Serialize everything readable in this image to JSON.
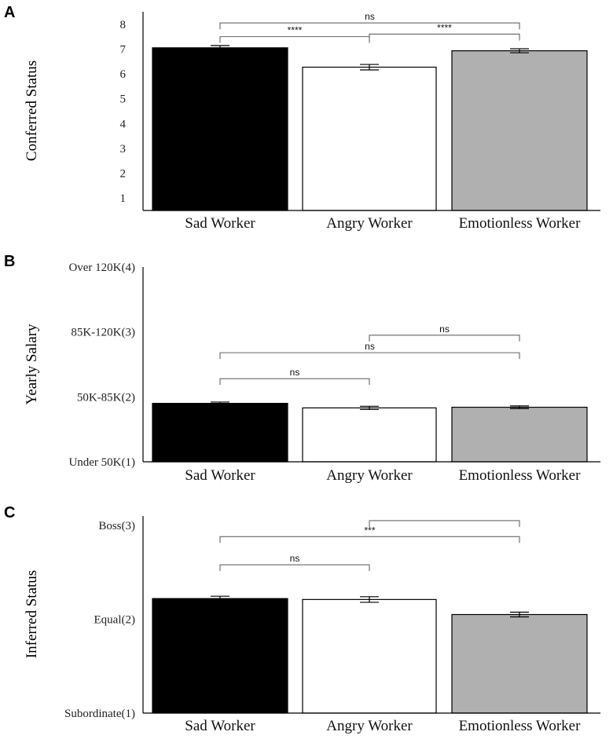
{
  "chart_data": [
    {
      "type": "bar",
      "panel": "A",
      "ylabel": "Conferred Status",
      "ylim": [
        0.5,
        8.5
      ],
      "yticks": [
        1,
        2,
        3,
        4,
        5,
        6,
        7,
        8
      ],
      "ytick_labels": [
        "1",
        "2",
        "3",
        "4",
        "5",
        "6",
        "7",
        "8"
      ],
      "categories": [
        "Sad Worker",
        "Angry Worker",
        "Emotionless Worker"
      ],
      "values": [
        7.05,
        6.27,
        6.93
      ],
      "errors": [
        0.09,
        0.11,
        0.08
      ],
      "colors": [
        "#000000",
        "#ffffff",
        "#b0b0b0"
      ],
      "comparisons": [
        {
          "from": 0,
          "to": 2,
          "y": 8.05,
          "label": "ns"
        },
        {
          "from": 0,
          "to": 1,
          "y": 7.5,
          "label": "****"
        },
        {
          "from": 1,
          "to": 2,
          "y": 7.6,
          "label": "****"
        }
      ]
    },
    {
      "type": "bar",
      "panel": "B",
      "ylabel": "Yearly Salary",
      "ylim": [
        1,
        4
      ],
      "yticks": [
        1,
        2,
        3,
        4
      ],
      "ytick_labels": [
        "Under 50K(1)",
        "50K-85K(2)",
        "85K-120K(3)",
        "Over 120K(4)"
      ],
      "categories": [
        "Sad Worker",
        "Angry Worker",
        "Emotionless Worker"
      ],
      "values": [
        1.9,
        1.83,
        1.84
      ],
      "errors": [
        0.02,
        0.025,
        0.02
      ],
      "colors": [
        "#000000",
        "#ffffff",
        "#b0b0b0"
      ],
      "comparisons": [
        {
          "from": 1,
          "to": 2,
          "y": 2.95,
          "label": "ns"
        },
        {
          "from": 0,
          "to": 2,
          "y": 2.68,
          "label": "ns"
        },
        {
          "from": 0,
          "to": 1,
          "y": 2.28,
          "label": "ns"
        }
      ]
    },
    {
      "type": "bar",
      "panel": "C",
      "ylabel": "Inferred Status",
      "ylim": [
        1,
        3.1
      ],
      "yticks": [
        1,
        2,
        3
      ],
      "ytick_labels": [
        "Subordinate(1)",
        "Equal(2)",
        "Boss(3)"
      ],
      "categories": [
        "Sad Worker",
        "Angry Worker",
        "Emotionless Worker"
      ],
      "values": [
        2.22,
        2.21,
        2.05
      ],
      "errors": [
        0.025,
        0.03,
        0.025
      ],
      "colors": [
        "#000000",
        "#ffffff",
        "#b0b0b0"
      ],
      "comparisons": [
        {
          "from": 1,
          "to": 2,
          "y": 3.05,
          "label": ""
        },
        {
          "from": 0,
          "to": 2,
          "y": 2.88,
          "label": "***"
        },
        {
          "from": 0,
          "to": 1,
          "y": 2.58,
          "label": "ns"
        }
      ]
    }
  ]
}
